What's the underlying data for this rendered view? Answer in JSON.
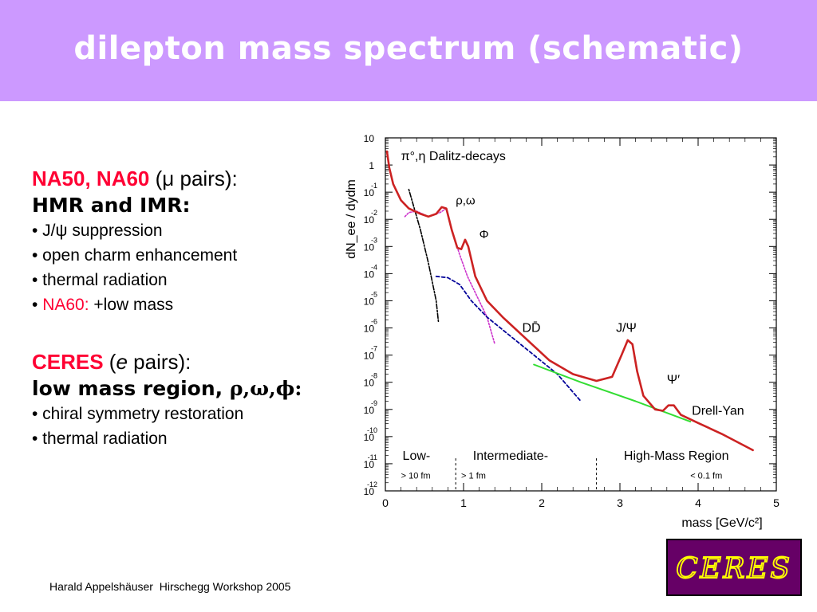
{
  "title": "dilepton mass spectrum (schematic)",
  "na_block": {
    "heading_red": "NA50, NA60",
    "heading_rest": " (μ pairs):",
    "subheading": "HMR and IMR:",
    "bullets": [
      "• J/ψ suppression",
      "• open charm enhancement",
      "• thermal radiation"
    ],
    "last_bullet_prefix": "• ",
    "last_bullet_red": "NA60:",
    "last_bullet_rest": " +low mass"
  },
  "ceres_block": {
    "heading_red": "CERES",
    "heading_open": " (",
    "heading_italic": "e",
    "heading_close": " pairs):",
    "subheading": "low mass region,",
    "subheading_greek": " ρ,ω,ϕ:",
    "bullets": [
      "• chiral symmetry restoration",
      "• thermal radiation"
    ]
  },
  "footer": "Harald Appelshäuser  Hirschegg Workshop 2005",
  "logo_text": "CERES",
  "colors": {
    "header_bg": "#cc99ff",
    "highlight_red": "#ff0033",
    "total_curve": "#cc2222",
    "dalitz_curve": "#000000",
    "rho_curve": "#cc33cc",
    "charm_curve": "#000099",
    "drell_yan_curve": "#33dd33",
    "logo_bg": "#660066",
    "logo_fg": "#ffff00"
  },
  "chart_data": {
    "type": "line",
    "ylabel": "dN_ee / dydm",
    "xlabel": "mass [GeV/c²]",
    "xlim": [
      0,
      5
    ],
    "ylim_log10": [
      -12,
      1
    ],
    "x_ticks": [
      "0",
      "1",
      "2",
      "3",
      "4",
      "5"
    ],
    "y_ticks": [
      {
        "base": "10",
        "exp": ""
      },
      {
        "base": "1",
        "exp": ""
      },
      {
        "base": "10",
        "exp": "-1"
      },
      {
        "base": "10",
        "exp": "-2"
      },
      {
        "base": "10",
        "exp": "-3"
      },
      {
        "base": "10",
        "exp": "-4"
      },
      {
        "base": "10",
        "exp": "-5"
      },
      {
        "base": "10",
        "exp": "-6"
      },
      {
        "base": "10",
        "exp": "-7"
      },
      {
        "base": "10",
        "exp": "-8"
      },
      {
        "base": "10",
        "exp": "-9"
      },
      {
        "base": "10",
        "exp": "-10"
      },
      {
        "base": "10",
        "exp": "-11"
      },
      {
        "base": "10",
        "exp": "-12"
      }
    ],
    "series": [
      {
        "key": "total",
        "points": [
          [
            0.02,
            0.5
          ],
          [
            0.05,
            -0.1
          ],
          [
            0.1,
            -0.7
          ],
          [
            0.2,
            -1.3
          ],
          [
            0.3,
            -1.6
          ],
          [
            0.45,
            -1.8
          ],
          [
            0.55,
            -1.9
          ],
          [
            0.65,
            -1.8
          ],
          [
            0.72,
            -1.55
          ],
          [
            0.78,
            -1.6
          ],
          [
            0.85,
            -2.4
          ],
          [
            0.92,
            -3.05
          ],
          [
            0.97,
            -3.1
          ],
          [
            1.02,
            -2.75
          ],
          [
            1.06,
            -3.0
          ],
          [
            1.15,
            -4.1
          ],
          [
            1.3,
            -5.0
          ],
          [
            1.5,
            -5.6
          ],
          [
            1.8,
            -6.4
          ],
          [
            2.1,
            -7.2
          ],
          [
            2.4,
            -7.7
          ],
          [
            2.7,
            -7.95
          ],
          [
            2.9,
            -7.8
          ],
          [
            3.02,
            -7.0
          ],
          [
            3.1,
            -6.45
          ],
          [
            3.16,
            -6.6
          ],
          [
            3.22,
            -7.6
          ],
          [
            3.3,
            -8.5
          ],
          [
            3.45,
            -9.0
          ],
          [
            3.55,
            -9.05
          ],
          [
            3.62,
            -8.85
          ],
          [
            3.69,
            -8.85
          ],
          [
            3.78,
            -9.2
          ],
          [
            4.0,
            -9.5
          ],
          [
            4.3,
            -9.9
          ],
          [
            4.7,
            -10.5
          ]
        ]
      },
      {
        "key": "dalitz",
        "points": [
          [
            0.3,
            -0.9
          ],
          [
            0.45,
            -2.4
          ],
          [
            0.55,
            -3.6
          ],
          [
            0.65,
            -5.0
          ],
          [
            0.68,
            -5.8
          ]
        ]
      },
      {
        "key": "rho",
        "points": [
          [
            0.25,
            -1.9
          ],
          [
            0.3,
            -1.75
          ],
          [
            0.4,
            -1.7
          ],
          [
            0.55,
            -1.9
          ],
          [
            0.7,
            -1.75
          ],
          [
            0.78,
            -1.6
          ],
          [
            0.85,
            -2.4
          ],
          [
            0.95,
            -3.3
          ],
          [
            1.05,
            -4.1
          ],
          [
            1.2,
            -5.0
          ],
          [
            1.3,
            -5.6
          ],
          [
            1.4,
            -6.6
          ]
        ]
      },
      {
        "key": "charm",
        "points": [
          [
            0.65,
            -4.1
          ],
          [
            0.8,
            -4.15
          ],
          [
            0.95,
            -4.4
          ],
          [
            1.1,
            -5.0
          ],
          [
            1.3,
            -5.6
          ],
          [
            1.6,
            -6.3
          ],
          [
            1.9,
            -7.0
          ],
          [
            2.2,
            -7.7
          ],
          [
            2.5,
            -8.7
          ]
        ]
      },
      {
        "key": "drell_yan",
        "points": [
          [
            1.9,
            -7.35
          ],
          [
            2.5,
            -8.0
          ],
          [
            3.2,
            -8.7
          ],
          [
            3.9,
            -9.45
          ]
        ]
      }
    ],
    "annotations": {
      "dalitz": "π°,η Dalitz-decays",
      "rho": "ρ,ω",
      "phi": "Φ",
      "dd": "DD̄",
      "jpsi": "J/Ψ",
      "psiprime": "Ψ′",
      "drell_yan": "Drell-Yan"
    },
    "regions": [
      {
        "label": "Low-",
        "sub": "> 10 fm"
      },
      {
        "label": "Intermediate-",
        "sub": "> 1 fm"
      },
      {
        "label": "High-Mass Region",
        "sub": "< 0.1 fm"
      }
    ],
    "region_boundaries": [
      0.9,
      2.7
    ]
  }
}
